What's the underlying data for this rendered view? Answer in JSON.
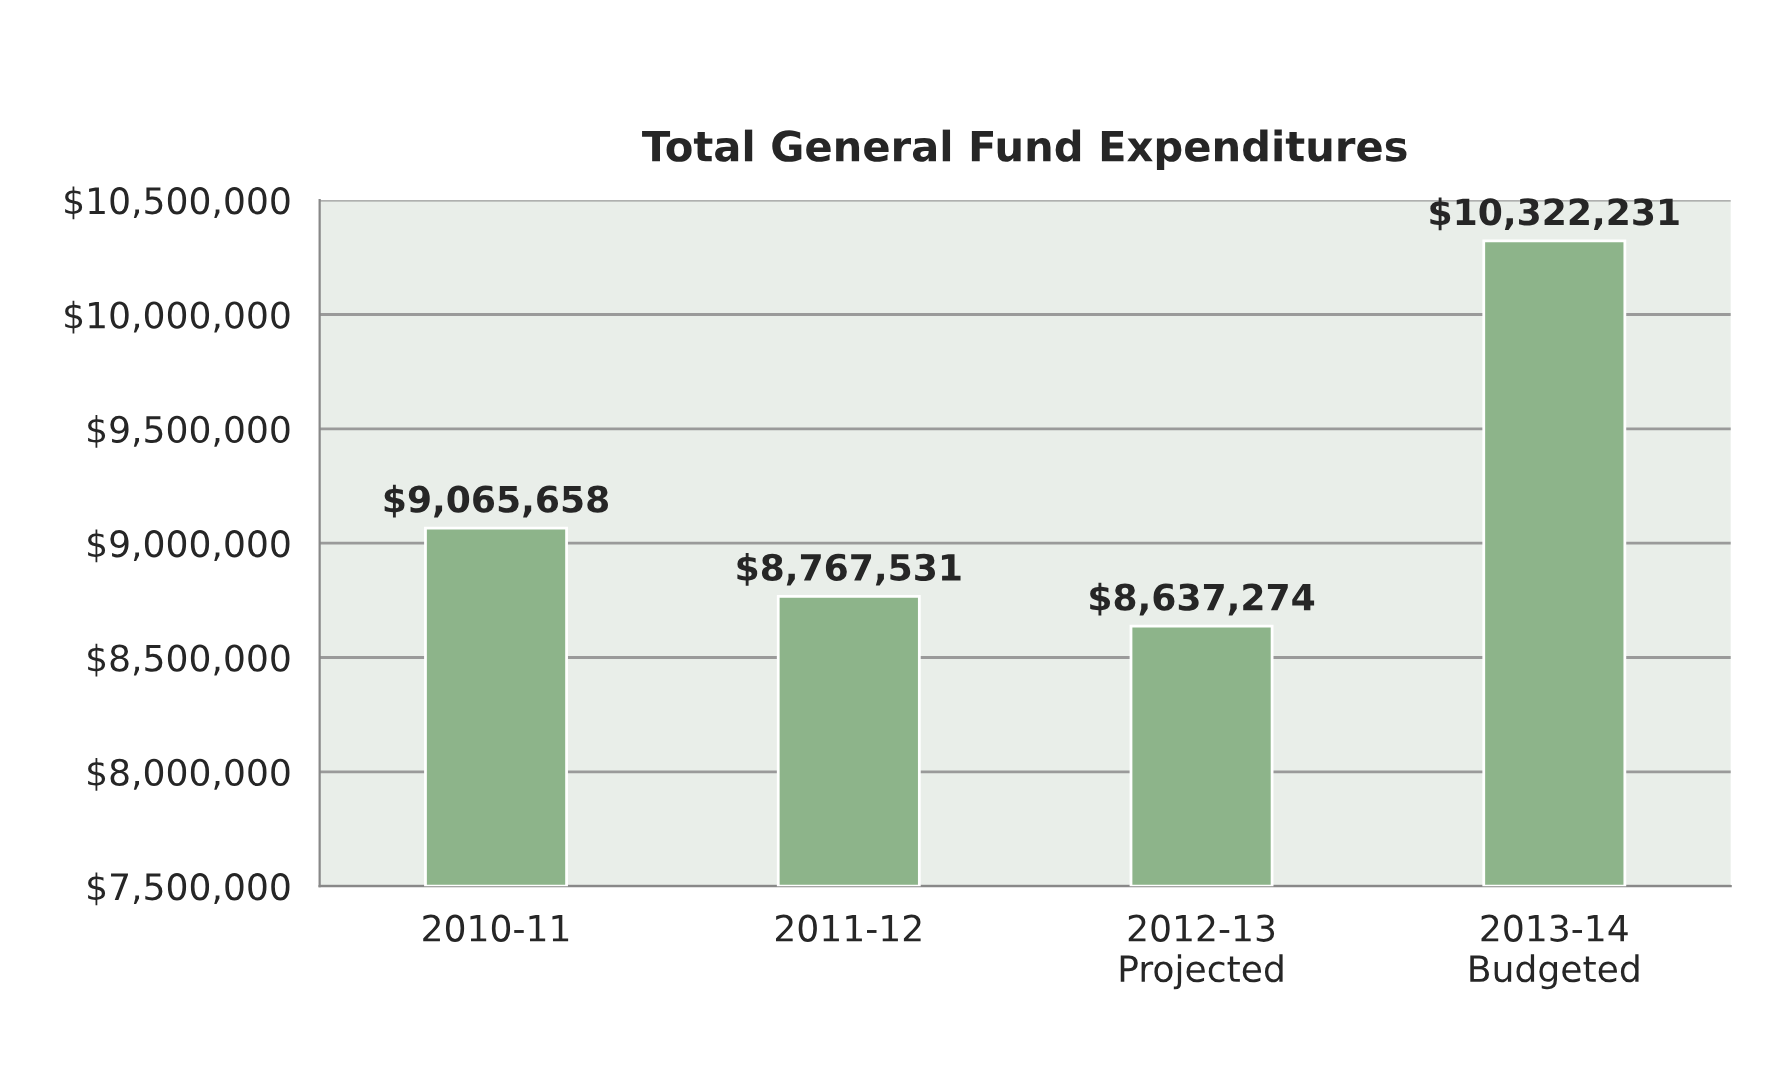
{
  "chart_data": {
    "type": "bar",
    "title": "Total General Fund Expenditures",
    "categories": [
      "2010-11",
      "2011-12",
      "2012-13\nProjected",
      "2013-14\nBudgeted"
    ],
    "values": [
      9065658,
      8767531,
      8637274,
      10322231
    ],
    "value_labels": [
      "$9,065,658",
      "$8,767,531",
      "$8,637,274",
      "$10,322,231"
    ],
    "color": "#8db48a",
    "ylim": [
      7500000,
      10500000
    ],
    "yticks": [
      {
        "value": 7500000,
        "label": "$7,500,000"
      },
      {
        "value": 8000000,
        "label": "$8,000,000"
      },
      {
        "value": 8500000,
        "label": "$8,500,000"
      },
      {
        "value": 9000000,
        "label": "$9,000,000"
      },
      {
        "value": 9500000,
        "label": "$9,500,000"
      },
      {
        "value": 10000000,
        "label": "$10,000,000"
      },
      {
        "value": 10500000,
        "label": "$10,500,000"
      }
    ],
    "grid": "y"
  }
}
